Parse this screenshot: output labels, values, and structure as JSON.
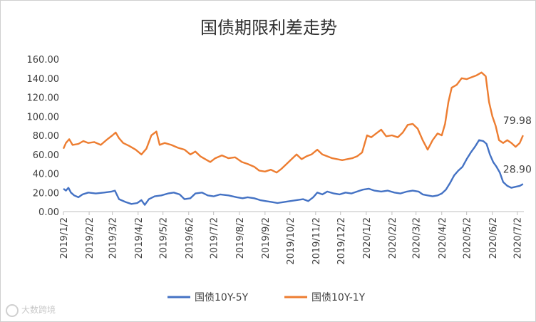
{
  "chart_data": {
    "type": "line",
    "title": "国债期限利差走势",
    "y_ticks": [
      "0.00",
      "20.00",
      "40.00",
      "60.00",
      "80.00",
      "100.00",
      "120.00",
      "140.00",
      "160.00"
    ],
    "ylim": [
      0,
      160
    ],
    "x_ticks": [
      "2019/1/2",
      "2019/2/2",
      "2019/3/2",
      "2019/4/2",
      "2019/5/2",
      "2019/6/2",
      "2019/7/2",
      "2019/8/2",
      "2019/9/2",
      "2019/10/2",
      "2019/11/2",
      "2019/12/2",
      "2020/1/2",
      "2020/2/2",
      "2020/3/2",
      "2020/4/2",
      "2020/5/2",
      "2020/6/2",
      "2020/7/2"
    ],
    "xlim": [
      "2019-01-02",
      "2020-07-10"
    ],
    "legend_position": "bottom",
    "series": [
      {
        "name": "国债10Y-5Y",
        "color": "#4472C4",
        "end_label": "28.90",
        "points": [
          [
            "2019-01-02",
            24
          ],
          [
            "2019-01-05",
            22
          ],
          [
            "2019-01-08",
            25
          ],
          [
            "2019-01-11",
            20
          ],
          [
            "2019-01-15",
            17
          ],
          [
            "2019-01-20",
            15
          ],
          [
            "2019-01-25",
            18
          ],
          [
            "2019-02-01",
            20
          ],
          [
            "2019-02-10",
            19
          ],
          [
            "2019-02-20",
            20
          ],
          [
            "2019-03-01",
            21
          ],
          [
            "2019-03-05",
            22
          ],
          [
            "2019-03-10",
            13
          ],
          [
            "2019-03-18",
            10
          ],
          [
            "2019-03-25",
            8
          ],
          [
            "2019-04-01",
            9
          ],
          [
            "2019-04-06",
            12
          ],
          [
            "2019-04-10",
            7
          ],
          [
            "2019-04-15",
            13
          ],
          [
            "2019-04-22",
            16
          ],
          [
            "2019-04-30",
            17
          ],
          [
            "2019-05-08",
            19
          ],
          [
            "2019-05-15",
            20
          ],
          [
            "2019-05-22",
            18
          ],
          [
            "2019-05-28",
            13
          ],
          [
            "2019-06-04",
            14
          ],
          [
            "2019-06-10",
            19
          ],
          [
            "2019-06-18",
            20
          ],
          [
            "2019-06-25",
            17
          ],
          [
            "2019-07-02",
            16
          ],
          [
            "2019-07-10",
            18
          ],
          [
            "2019-07-20",
            17
          ],
          [
            "2019-07-30",
            15
          ],
          [
            "2019-08-06",
            14
          ],
          [
            "2019-08-12",
            15
          ],
          [
            "2019-08-20",
            14
          ],
          [
            "2019-08-27",
            12
          ],
          [
            "2019-09-03",
            11
          ],
          [
            "2019-09-10",
            10
          ],
          [
            "2019-09-17",
            9
          ],
          [
            "2019-09-25",
            10
          ],
          [
            "2019-10-02",
            11
          ],
          [
            "2019-10-10",
            12
          ],
          [
            "2019-10-18",
            13
          ],
          [
            "2019-10-24",
            11
          ],
          [
            "2019-10-30",
            15
          ],
          [
            "2019-11-04",
            20
          ],
          [
            "2019-11-10",
            18
          ],
          [
            "2019-11-16",
            21
          ],
          [
            "2019-11-24",
            19
          ],
          [
            "2019-12-01",
            18
          ],
          [
            "2019-12-08",
            20
          ],
          [
            "2019-12-15",
            19
          ],
          [
            "2019-12-22",
            21
          ],
          [
            "2019-12-29",
            23
          ],
          [
            "2020-01-05",
            24
          ],
          [
            "2020-01-12",
            22
          ],
          [
            "2020-01-20",
            21
          ],
          [
            "2020-01-28",
            22
          ],
          [
            "2020-02-05",
            20
          ],
          [
            "2020-02-12",
            19
          ],
          [
            "2020-02-20",
            21
          ],
          [
            "2020-02-27",
            22
          ],
          [
            "2020-03-05",
            21
          ],
          [
            "2020-03-10",
            18
          ],
          [
            "2020-03-16",
            17
          ],
          [
            "2020-03-22",
            16
          ],
          [
            "2020-03-28",
            17
          ],
          [
            "2020-04-02",
            19
          ],
          [
            "2020-04-07",
            23
          ],
          [
            "2020-04-12",
            30
          ],
          [
            "2020-04-17",
            38
          ],
          [
            "2020-04-22",
            43
          ],
          [
            "2020-04-27",
            47
          ],
          [
            "2020-05-02",
            55
          ],
          [
            "2020-05-07",
            62
          ],
          [
            "2020-05-12",
            68
          ],
          [
            "2020-05-17",
            75
          ],
          [
            "2020-05-22",
            74
          ],
          [
            "2020-05-26",
            71
          ],
          [
            "2020-05-30",
            60
          ],
          [
            "2020-06-03",
            52
          ],
          [
            "2020-06-07",
            47
          ],
          [
            "2020-06-11",
            41
          ],
          [
            "2020-06-15",
            31
          ],
          [
            "2020-06-20",
            27
          ],
          [
            "2020-06-25",
            25
          ],
          [
            "2020-06-30",
            26
          ],
          [
            "2020-07-05",
            27
          ],
          [
            "2020-07-09",
            28.9
          ]
        ]
      },
      {
        "name": "国债10Y-1Y",
        "color": "#ED7D31",
        "end_label": "79.98",
        "points": [
          [
            "2019-01-02",
            66
          ],
          [
            "2019-01-05",
            72
          ],
          [
            "2019-01-09",
            76
          ],
          [
            "2019-01-13",
            70
          ],
          [
            "2019-01-20",
            71
          ],
          [
            "2019-01-26",
            74
          ],
          [
            "2019-02-01",
            72
          ],
          [
            "2019-02-08",
            73
          ],
          [
            "2019-02-16",
            70
          ],
          [
            "2019-02-24",
            76
          ],
          [
            "2019-03-02",
            80
          ],
          [
            "2019-03-06",
            83
          ],
          [
            "2019-03-10",
            77
          ],
          [
            "2019-03-15",
            72
          ],
          [
            "2019-03-22",
            69
          ],
          [
            "2019-03-30",
            65
          ],
          [
            "2019-04-06",
            60
          ],
          [
            "2019-04-12",
            66
          ],
          [
            "2019-04-18",
            80
          ],
          [
            "2019-04-24",
            84
          ],
          [
            "2019-04-28",
            70
          ],
          [
            "2019-05-04",
            72
          ],
          [
            "2019-05-12",
            70
          ],
          [
            "2019-05-20",
            67
          ],
          [
            "2019-05-28",
            65
          ],
          [
            "2019-06-04",
            60
          ],
          [
            "2019-06-10",
            63
          ],
          [
            "2019-06-16",
            58
          ],
          [
            "2019-06-22",
            55
          ],
          [
            "2019-06-28",
            52
          ],
          [
            "2019-07-04",
            56
          ],
          [
            "2019-07-12",
            59
          ],
          [
            "2019-07-20",
            56
          ],
          [
            "2019-07-28",
            57
          ],
          [
            "2019-08-05",
            52
          ],
          [
            "2019-08-12",
            50
          ],
          [
            "2019-08-20",
            47
          ],
          [
            "2019-08-26",
            43
          ],
          [
            "2019-09-02",
            42
          ],
          [
            "2019-09-09",
            44
          ],
          [
            "2019-09-16",
            41
          ],
          [
            "2019-09-22",
            45
          ],
          [
            "2019-09-28",
            50
          ],
          [
            "2019-10-04",
            55
          ],
          [
            "2019-10-10",
            60
          ],
          [
            "2019-10-16",
            55
          ],
          [
            "2019-10-22",
            58
          ],
          [
            "2019-10-28",
            60
          ],
          [
            "2019-11-04",
            65
          ],
          [
            "2019-11-10",
            60
          ],
          [
            "2019-11-16",
            58
          ],
          [
            "2019-11-22",
            56
          ],
          [
            "2019-11-28",
            55
          ],
          [
            "2019-12-04",
            54
          ],
          [
            "2019-12-10",
            55
          ],
          [
            "2019-12-16",
            56
          ],
          [
            "2019-12-22",
            58
          ],
          [
            "2019-12-28",
            62
          ],
          [
            "2020-01-03",
            80
          ],
          [
            "2020-01-08",
            78
          ],
          [
            "2020-01-14",
            82
          ],
          [
            "2020-01-20",
            86
          ],
          [
            "2020-01-26",
            79
          ],
          [
            "2020-02-02",
            80
          ],
          [
            "2020-02-09",
            78
          ],
          [
            "2020-02-15",
            83
          ],
          [
            "2020-02-21",
            91
          ],
          [
            "2020-02-27",
            92
          ],
          [
            "2020-03-04",
            87
          ],
          [
            "2020-03-10",
            75
          ],
          [
            "2020-03-16",
            65
          ],
          [
            "2020-03-22",
            75
          ],
          [
            "2020-03-28",
            82
          ],
          [
            "2020-04-02",
            80
          ],
          [
            "2020-04-06",
            92
          ],
          [
            "2020-04-10",
            115
          ],
          [
            "2020-04-14",
            130
          ],
          [
            "2020-04-20",
            133
          ],
          [
            "2020-04-26",
            140
          ],
          [
            "2020-05-02",
            139
          ],
          [
            "2020-05-08",
            141
          ],
          [
            "2020-05-14",
            143
          ],
          [
            "2020-05-20",
            146
          ],
          [
            "2020-05-25",
            142
          ],
          [
            "2020-05-29",
            115
          ],
          [
            "2020-06-02",
            100
          ],
          [
            "2020-06-06",
            90
          ],
          [
            "2020-06-10",
            75
          ],
          [
            "2020-06-15",
            72
          ],
          [
            "2020-06-20",
            75
          ],
          [
            "2020-06-25",
            72
          ],
          [
            "2020-06-30",
            68
          ],
          [
            "2020-07-05",
            72
          ],
          [
            "2020-07-09",
            79.98
          ]
        ]
      }
    ]
  },
  "watermark": {
    "text": "大数跨境"
  }
}
